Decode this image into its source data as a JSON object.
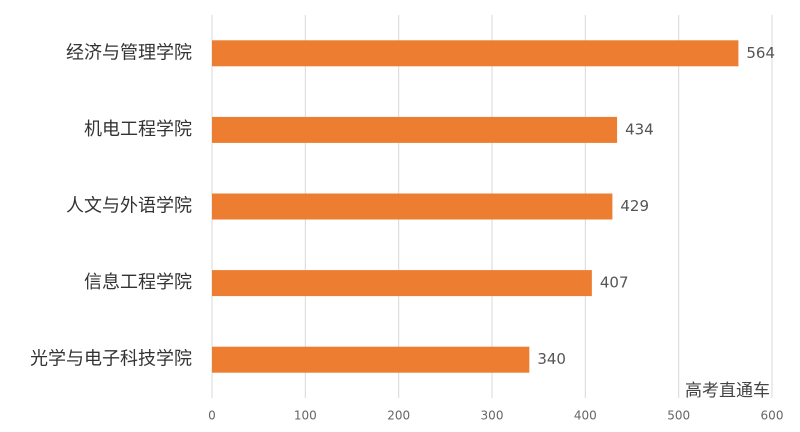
{
  "chart_data": {
    "type": "bar",
    "orientation": "horizontal",
    "categories": [
      "经济与管理学院",
      "机电工程学院",
      "人文与外语学院",
      "信息工程学院",
      "光学与电子科技学院"
    ],
    "values": [
      564,
      434,
      429,
      407,
      340
    ],
    "color": "#ed7d31",
    "xlim": [
      0,
      600
    ],
    "xticks": [
      0,
      100,
      200,
      300,
      400,
      500,
      600
    ],
    "grid": true,
    "watermark": "高考直通车"
  }
}
